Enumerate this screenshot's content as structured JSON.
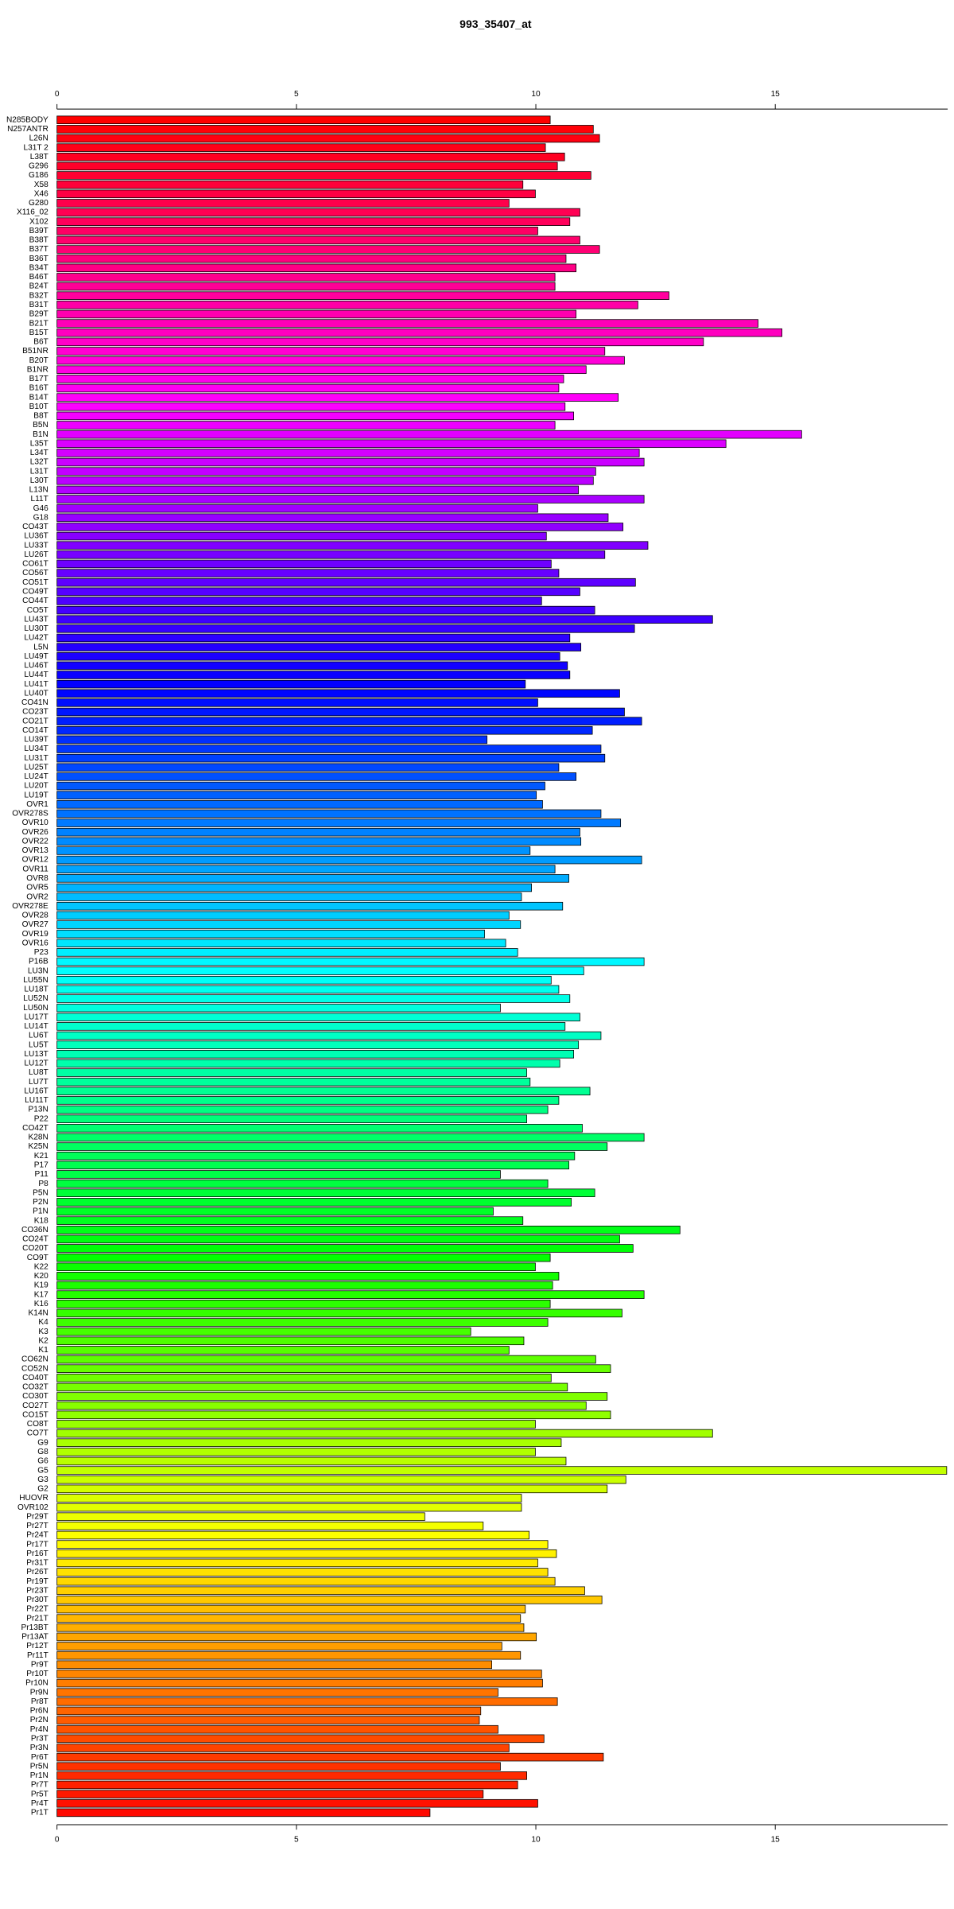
{
  "chart_data": {
    "type": "barh",
    "title": "993_35407_at",
    "categories": [
      "N285BODY",
      "N257ANTR",
      "L26N",
      "L31T 2",
      "L38T",
      "G296",
      "G186",
      "X58",
      "X46",
      "G280",
      "X116_02",
      "X102",
      "B39T",
      "B38T",
      "B37T",
      "B36T",
      "B34T",
      "B46T",
      "B24T",
      "B32T",
      "B31T",
      "B29T",
      "B21T",
      "B15T",
      "B6T",
      "B51NR",
      "B20T",
      "B1NR",
      "B17T",
      "B16T",
      "B14T",
      "B10T",
      "B8T",
      "B5N",
      "B1N",
      "L35T",
      "L34T",
      "L32T",
      "L31T",
      "L30T",
      "L13N",
      "L11T",
      "G46",
      "G18",
      "CO43T",
      "LU36T",
      "LU33T",
      "LU26T",
      "CO61T",
      "CO56T",
      "CO51T",
      "CO49T",
      "CO44T",
      "CO5T",
      "LU43T",
      "LU30T",
      "LU42T",
      "L5N",
      "LU49T",
      "LU46T",
      "LU44T",
      "LU41T",
      "LU40T",
      "CO41N",
      "CO23T",
      "CO21T",
      "CO14T",
      "LU39T",
      "LU34T",
      "LU31T",
      "LU25T",
      "LU24T",
      "LU20T",
      "LU19T",
      "OVR1",
      "OVR278S",
      "OVR10",
      "OVR26",
      "OVR22",
      "OVR13",
      "OVR12",
      "OVR11",
      "OVR8",
      "OVR5",
      "OVR2",
      "OVR278E",
      "OVR28",
      "OVR27",
      "OVR19",
      "OVR16",
      "P23",
      "P16B",
      "LU3N",
      "LU55N",
      "LU18T",
      "LU52N",
      "LU50N",
      "LU17T",
      "LU14T",
      "LU6T",
      "LU5T",
      "LU13T",
      "LU12T",
      "LU8T",
      "LU7T",
      "LU16T",
      "LU11T",
      "P13N",
      "P22",
      "CO42T",
      "K28N",
      "K25N",
      "K21",
      "P17",
      "P11",
      "P8",
      "P5N",
      "P2N",
      "P1N",
      "K18",
      "CO36N",
      "CO24T",
      "CO20T",
      "CO9T",
      "K22",
      "K20",
      "K19",
      "K17",
      "K16",
      "K14N",
      "K4",
      "K3",
      "K2",
      "K1",
      "CO62N",
      "CO52N",
      "CO40T",
      "CO32T",
      "CO30T",
      "CO27T",
      "CO15T",
      "CO8T",
      "CO7T",
      "G9",
      "G8",
      "G6",
      "G5",
      "G3",
      "G2",
      "HUOVR",
      "OVR102",
      "Pr29T",
      "Pr27T",
      "Pr24T",
      "Pr17T",
      "Pr16T",
      "Pr31T",
      "Pr26T",
      "Pr19T",
      "Pr23T",
      "Pr30T",
      "Pr22T",
      "Pr21T",
      "Pr13BT",
      "Pr13AT",
      "Pr12T",
      "Pr11T",
      "Pr9T",
      "Pr10T",
      "Pr10N",
      "Pr9N",
      "Pr8T",
      "Pr6N",
      "Pr2N",
      "Pr4N",
      "Pr3T",
      "Pr3N",
      "Pr6T",
      "Pr5N",
      "Pr1N",
      "Pr7T",
      "Pr5T",
      "Pr4T",
      "Pr1T"
    ],
    "values": [
      10.3,
      11.2,
      11.33,
      10.2,
      10.6,
      10.45,
      11.15,
      9.73,
      9.99,
      9.44,
      10.92,
      10.71,
      10.04,
      10.92,
      11.33,
      10.63,
      10.84,
      10.4,
      10.4,
      12.78,
      12.13,
      10.84,
      14.64,
      15.14,
      13.5,
      11.44,
      11.85,
      11.05,
      10.58,
      10.48,
      11.72,
      10.61,
      10.79,
      10.4,
      15.55,
      13.97,
      12.16,
      12.26,
      11.25,
      11.2,
      10.89,
      12.26,
      10.04,
      11.51,
      11.82,
      10.22,
      12.34,
      11.44,
      10.32,
      10.48,
      12.08,
      10.92,
      10.12,
      11.23,
      13.69,
      12.06,
      10.71,
      10.94,
      10.5,
      10.66,
      10.71,
      9.78,
      11.75,
      10.04,
      11.85,
      12.21,
      11.18,
      8.98,
      11.36,
      11.44,
      10.48,
      10.84,
      10.19,
      10.01,
      10.14,
      11.36,
      11.77,
      10.92,
      10.94,
      9.88,
      12.21,
      10.4,
      10.69,
      9.91,
      9.7,
      10.56,
      9.44,
      9.68,
      8.93,
      9.37,
      9.62,
      12.26,
      11.0,
      10.32,
      10.48,
      10.71,
      9.26,
      10.92,
      10.61,
      11.36,
      10.89,
      10.79,
      10.5,
      9.81,
      9.88,
      11.13,
      10.48,
      10.25,
      9.81,
      10.97,
      12.26,
      11.49,
      10.81,
      10.69,
      9.26,
      10.25,
      11.23,
      10.74,
      9.11,
      9.73,
      13.01,
      11.75,
      12.03,
      10.3,
      9.99,
      10.48,
      10.35,
      12.26,
      10.3,
      11.8,
      10.25,
      8.64,
      9.75,
      9.44,
      11.25,
      11.56,
      10.32,
      10.66,
      11.49,
      11.05,
      11.56,
      9.99,
      13.69,
      10.53,
      9.99,
      10.63,
      18.58,
      11.88,
      11.49,
      9.7,
      9.7,
      7.68,
      8.9,
      9.86,
      10.25,
      10.43,
      10.04,
      10.25,
      10.4,
      11.02,
      11.38,
      9.78,
      9.68,
      9.75,
      10.01,
      9.29,
      9.68,
      9.08,
      10.12,
      10.14,
      9.21,
      10.45,
      8.85,
      8.82,
      9.21,
      10.17,
      9.44,
      11.41,
      9.26,
      9.81,
      9.62,
      8.9,
      10.04,
      7.79
    ],
    "palette": "rainbow",
    "xlim": [
      0,
      18.6
    ],
    "xticks": [
      0,
      5,
      10,
      15
    ]
  }
}
